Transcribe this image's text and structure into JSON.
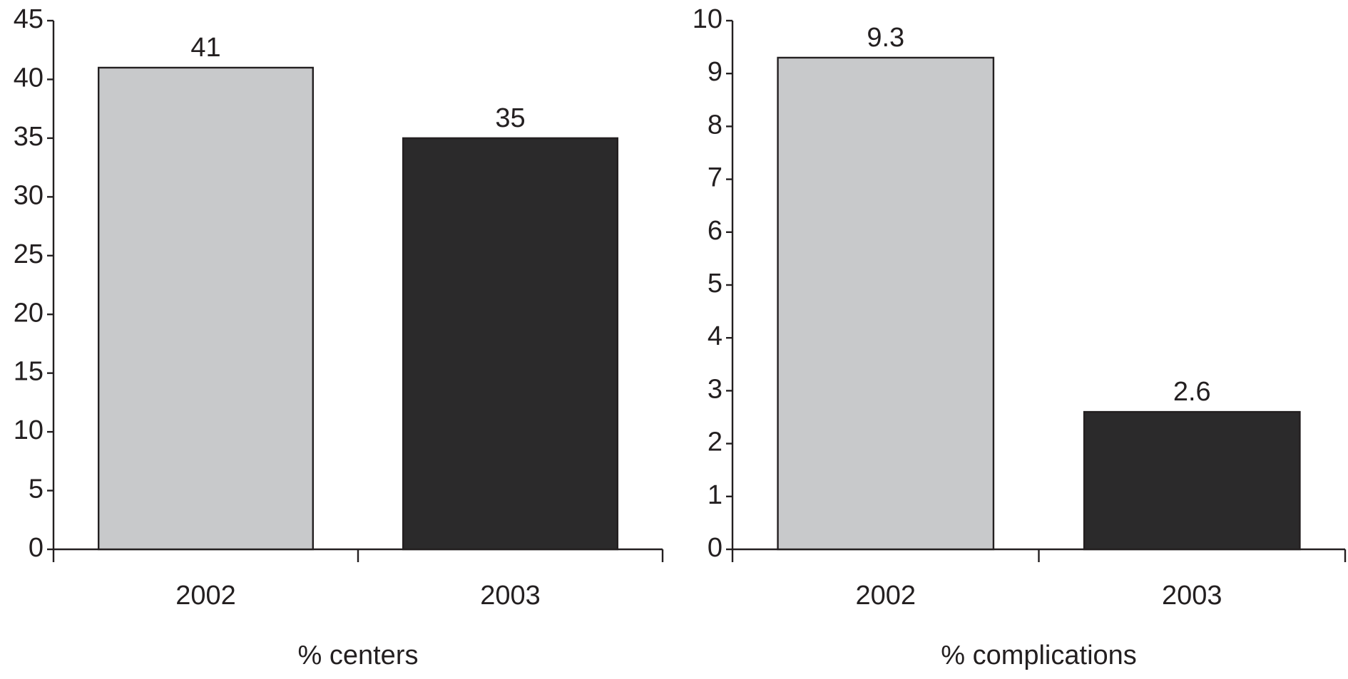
{
  "chart_data": [
    {
      "type": "bar",
      "x_label": "% centers",
      "categories": [
        "2002",
        "2003"
      ],
      "values": [
        41,
        35
      ],
      "colors": [
        "#c8c9cb",
        "#2b2a2b"
      ],
      "ylim": [
        0,
        45
      ],
      "yticks": [
        0,
        5,
        10,
        15,
        20,
        25,
        30,
        35,
        40,
        45
      ]
    },
    {
      "type": "bar",
      "x_label": "% complications",
      "categories": [
        "2002",
        "2003"
      ],
      "values": [
        9.3,
        2.6
      ],
      "colors": [
        "#c8c9cb",
        "#2b2a2b"
      ],
      "ylim": [
        0,
        10
      ],
      "yticks": [
        0,
        1,
        2,
        3,
        4,
        5,
        6,
        7,
        8,
        9,
        10
      ]
    }
  ]
}
